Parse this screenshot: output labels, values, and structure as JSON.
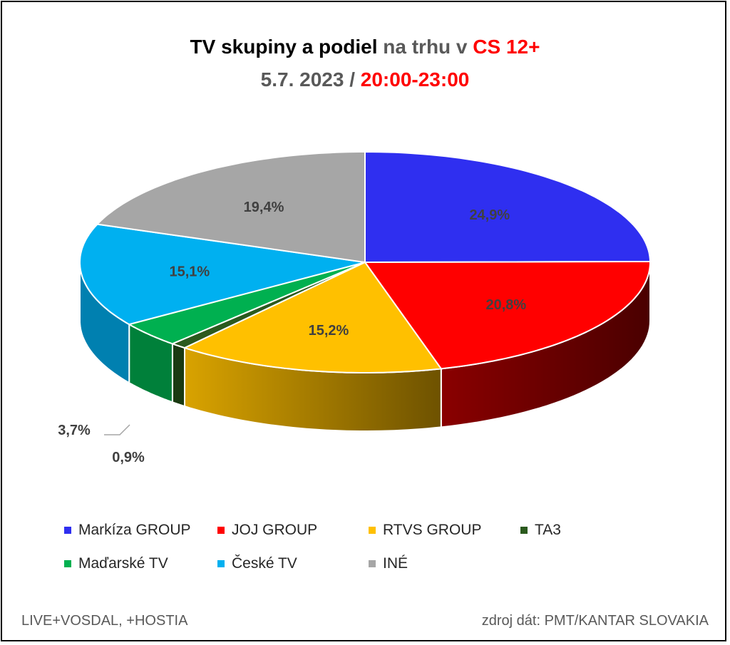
{
  "title": {
    "line1_a": "TV skupiny a podiel",
    "line1_b": "na trhu v",
    "line1_c": "CS 12+",
    "line2_a": "5.7. 2023 /",
    "line2_b": "20:00-23:00"
  },
  "chart_data": {
    "type": "pie",
    "categories": [
      "Markíza GROUP",
      "JOJ GROUP",
      "RTVS GROUP",
      "TA3",
      "Maďarské  TV",
      "České  TV",
      "INÉ"
    ],
    "values": [
      24.9,
      20.8,
      15.2,
      0.9,
      3.7,
      15.1,
      19.4
    ],
    "labels": [
      "24,9%",
      "20,8%",
      "15,2%",
      "0,9%",
      "3,7%",
      "15,1%",
      "19,4%"
    ],
    "colors": [
      "#2f2ff0",
      "#ff0000",
      "#ffc000",
      "#2b5a1e",
      "#00b050",
      "#00b0f0",
      "#a6a6a6"
    ],
    "side_colors": [
      "#1f1fa0",
      "#660000",
      "#a67d00",
      "#1a3a12",
      "#00803a",
      "#0080b0",
      "#6e6e6e"
    ],
    "legend_placement": "bottom"
  },
  "footer": {
    "left": "LIVE+VOSDAL, +HOSTIA",
    "right": "zdroj dát: PMT/KANTAR SLOVAKIA"
  }
}
